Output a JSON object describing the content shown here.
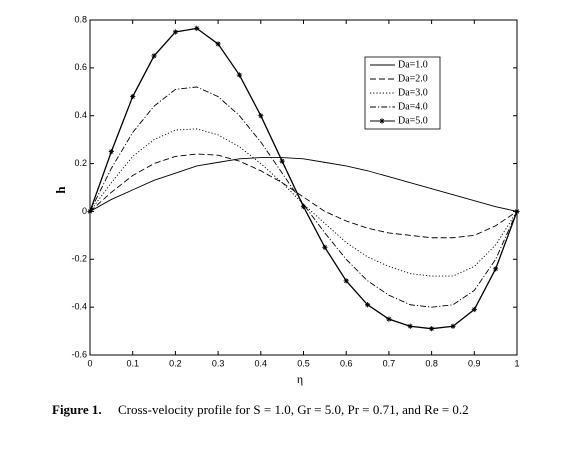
{
  "chart_data": {
    "type": "line",
    "xlabel": "η",
    "ylabel": "h",
    "caption_label": "Figure  1.",
    "caption": "Cross-velocity profile for S = 1.0, Gr = 5.0, Pr = 0.71, and Re = 0.2",
    "x": [
      0,
      0.05,
      0.1,
      0.15,
      0.2,
      0.25,
      0.3,
      0.35,
      0.4,
      0.45,
      0.5,
      0.55,
      0.6,
      0.65,
      0.7,
      0.75,
      0.8,
      0.85,
      0.9,
      0.95,
      1
    ],
    "series": [
      {
        "name": "Da=1.0",
        "color": "#000000",
        "style": "solid",
        "values": [
          0,
          0.05,
          0.09,
          0.13,
          0.16,
          0.19,
          0.205,
          0.22,
          0.225,
          0.225,
          0.22,
          0.205,
          0.19,
          0.17,
          0.145,
          0.12,
          0.095,
          0.07,
          0.045,
          0.02,
          0
        ]
      },
      {
        "name": "Da=2.0",
        "color": "#000000",
        "style": "dashed",
        "values": [
          0,
          0.08,
          0.15,
          0.2,
          0.23,
          0.24,
          0.235,
          0.21,
          0.17,
          0.12,
          0.06,
          0,
          -0.04,
          -0.07,
          -0.09,
          -0.1,
          -0.11,
          -0.11,
          -0.1,
          -0.06,
          0
        ]
      },
      {
        "name": "Da=3.0",
        "color": "#000000",
        "style": "dotted",
        "values": [
          0,
          0.12,
          0.23,
          0.3,
          0.34,
          0.345,
          0.32,
          0.27,
          0.2,
          0.12,
          0.03,
          -0.05,
          -0.13,
          -0.19,
          -0.23,
          -0.26,
          -0.27,
          -0.27,
          -0.23,
          -0.14,
          0
        ]
      },
      {
        "name": "Da=4.0",
        "color": "#000000",
        "style": "dashdot",
        "values": [
          0,
          0.18,
          0.33,
          0.44,
          0.51,
          0.52,
          0.48,
          0.4,
          0.29,
          0.16,
          0.03,
          -0.09,
          -0.2,
          -0.29,
          -0.35,
          -0.39,
          -0.4,
          -0.39,
          -0.33,
          -0.2,
          0
        ]
      },
      {
        "name": "Da=5.0",
        "color": "#000000",
        "style": "solid",
        "marker": "star",
        "values": [
          0,
          0.25,
          0.48,
          0.65,
          0.75,
          0.765,
          0.7,
          0.57,
          0.4,
          0.21,
          0.02,
          -0.15,
          -0.29,
          -0.39,
          -0.45,
          -0.48,
          -0.49,
          -0.48,
          -0.41,
          -0.24,
          0
        ]
      }
    ],
    "xlim": [
      0,
      1
    ],
    "xticks": [
      0,
      0.1,
      0.2,
      0.3,
      0.4,
      0.5,
      0.6,
      0.7,
      0.8,
      0.9,
      1
    ],
    "ylim": [
      -0.6,
      0.8
    ],
    "yticks": [
      -0.6,
      -0.4,
      -0.2,
      0,
      0.2,
      0.4,
      0.6,
      0.8
    ],
    "legend": "upper right"
  }
}
